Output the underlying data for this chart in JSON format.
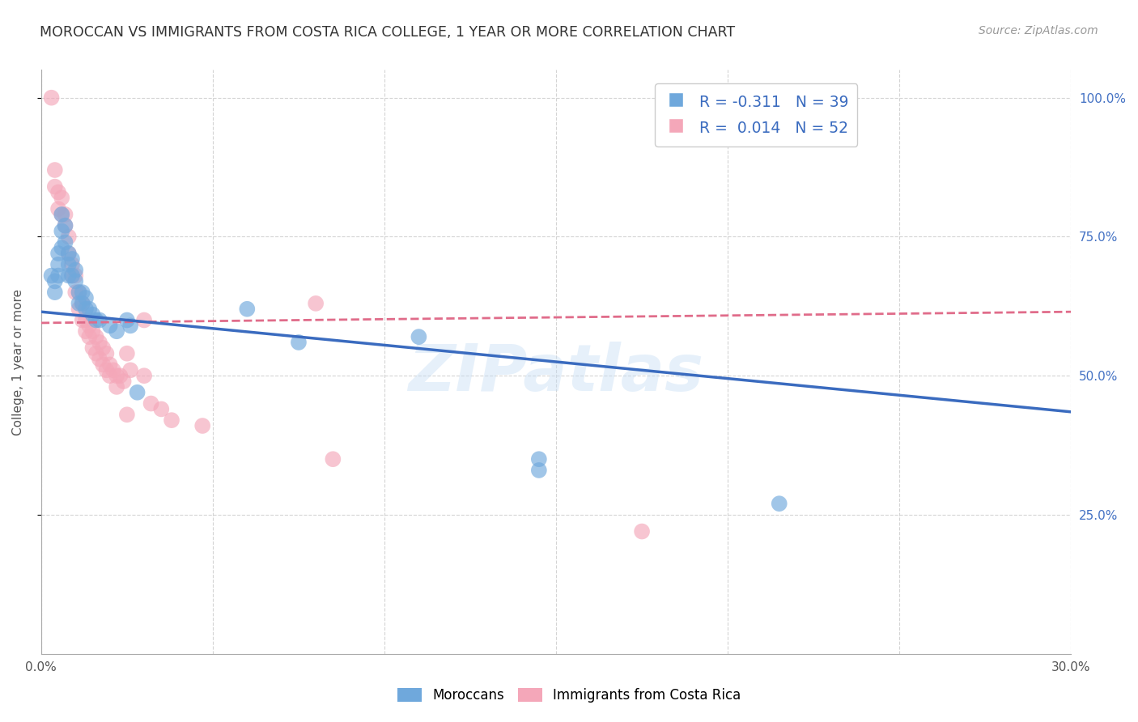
{
  "title": "MOROCCAN VS IMMIGRANTS FROM COSTA RICA COLLEGE, 1 YEAR OR MORE CORRELATION CHART",
  "source": "Source: ZipAtlas.com",
  "ylabel": "College, 1 year or more",
  "xlim": [
    0.0,
    0.3
  ],
  "ylim": [
    0.0,
    1.05
  ],
  "xticks": [
    0.0,
    0.05,
    0.1,
    0.15,
    0.2,
    0.25,
    0.3
  ],
  "xticklabels": [
    "0.0%",
    "",
    "",
    "",
    "",
    "",
    "30.0%"
  ],
  "yticks_right": [
    0.25,
    0.5,
    0.75,
    1.0
  ],
  "ytick_labels_right": [
    "25.0%",
    "50.0%",
    "75.0%",
    "100.0%"
  ],
  "legend_r_blue": "R = -0.311",
  "legend_n_blue": "N = 39",
  "legend_r_pink": "R = 0.014",
  "legend_n_pink": "N = 52",
  "blue_scatter": [
    [
      0.003,
      0.68
    ],
    [
      0.004,
      0.67
    ],
    [
      0.004,
      0.65
    ],
    [
      0.005,
      0.72
    ],
    [
      0.005,
      0.7
    ],
    [
      0.005,
      0.68
    ],
    [
      0.006,
      0.79
    ],
    [
      0.006,
      0.76
    ],
    [
      0.006,
      0.73
    ],
    [
      0.007,
      0.77
    ],
    [
      0.007,
      0.74
    ],
    [
      0.008,
      0.72
    ],
    [
      0.008,
      0.7
    ],
    [
      0.008,
      0.68
    ],
    [
      0.009,
      0.71
    ],
    [
      0.009,
      0.68
    ],
    [
      0.01,
      0.69
    ],
    [
      0.01,
      0.67
    ],
    [
      0.011,
      0.65
    ],
    [
      0.011,
      0.63
    ],
    [
      0.012,
      0.65
    ],
    [
      0.012,
      0.63
    ],
    [
      0.013,
      0.64
    ],
    [
      0.013,
      0.62
    ],
    [
      0.014,
      0.62
    ],
    [
      0.015,
      0.61
    ],
    [
      0.016,
      0.6
    ],
    [
      0.017,
      0.6
    ],
    [
      0.02,
      0.59
    ],
    [
      0.022,
      0.58
    ],
    [
      0.025,
      0.6
    ],
    [
      0.026,
      0.59
    ],
    [
      0.028,
      0.47
    ],
    [
      0.06,
      0.62
    ],
    [
      0.075,
      0.56
    ],
    [
      0.11,
      0.57
    ],
    [
      0.145,
      0.35
    ],
    [
      0.145,
      0.33
    ],
    [
      0.215,
      0.27
    ]
  ],
  "pink_scatter": [
    [
      0.003,
      1.0
    ],
    [
      0.004,
      0.87
    ],
    [
      0.004,
      0.84
    ],
    [
      0.005,
      0.83
    ],
    [
      0.005,
      0.8
    ],
    [
      0.006,
      0.82
    ],
    [
      0.006,
      0.79
    ],
    [
      0.007,
      0.79
    ],
    [
      0.007,
      0.77
    ],
    [
      0.008,
      0.75
    ],
    [
      0.008,
      0.72
    ],
    [
      0.009,
      0.7
    ],
    [
      0.009,
      0.68
    ],
    [
      0.01,
      0.68
    ],
    [
      0.01,
      0.65
    ],
    [
      0.011,
      0.65
    ],
    [
      0.011,
      0.62
    ],
    [
      0.012,
      0.63
    ],
    [
      0.012,
      0.6
    ],
    [
      0.013,
      0.6
    ],
    [
      0.013,
      0.58
    ],
    [
      0.014,
      0.59
    ],
    [
      0.014,
      0.57
    ],
    [
      0.015,
      0.58
    ],
    [
      0.015,
      0.55
    ],
    [
      0.016,
      0.57
    ],
    [
      0.016,
      0.54
    ],
    [
      0.017,
      0.56
    ],
    [
      0.017,
      0.53
    ],
    [
      0.018,
      0.55
    ],
    [
      0.018,
      0.52
    ],
    [
      0.019,
      0.54
    ],
    [
      0.019,
      0.51
    ],
    [
      0.02,
      0.52
    ],
    [
      0.02,
      0.5
    ],
    [
      0.021,
      0.51
    ],
    [
      0.022,
      0.5
    ],
    [
      0.022,
      0.48
    ],
    [
      0.023,
      0.5
    ],
    [
      0.024,
      0.49
    ],
    [
      0.025,
      0.54
    ],
    [
      0.025,
      0.43
    ],
    [
      0.026,
      0.51
    ],
    [
      0.03,
      0.6
    ],
    [
      0.03,
      0.5
    ],
    [
      0.032,
      0.45
    ],
    [
      0.035,
      0.44
    ],
    [
      0.038,
      0.42
    ],
    [
      0.047,
      0.41
    ],
    [
      0.08,
      0.63
    ],
    [
      0.085,
      0.35
    ],
    [
      0.175,
      0.22
    ]
  ],
  "blue_line_x": [
    0.0,
    0.3
  ],
  "blue_line_y": [
    0.615,
    0.435
  ],
  "pink_line_x": [
    0.0,
    0.3
  ],
  "pink_line_y": [
    0.595,
    0.615
  ],
  "blue_color": "#6fa8dc",
  "pink_color": "#f4a7b9",
  "blue_line_color": "#3a6bbf",
  "pink_line_color": "#e06c8a",
  "watermark": "ZIPatlas",
  "background_color": "#ffffff",
  "grid_color": "#d0d0d0"
}
